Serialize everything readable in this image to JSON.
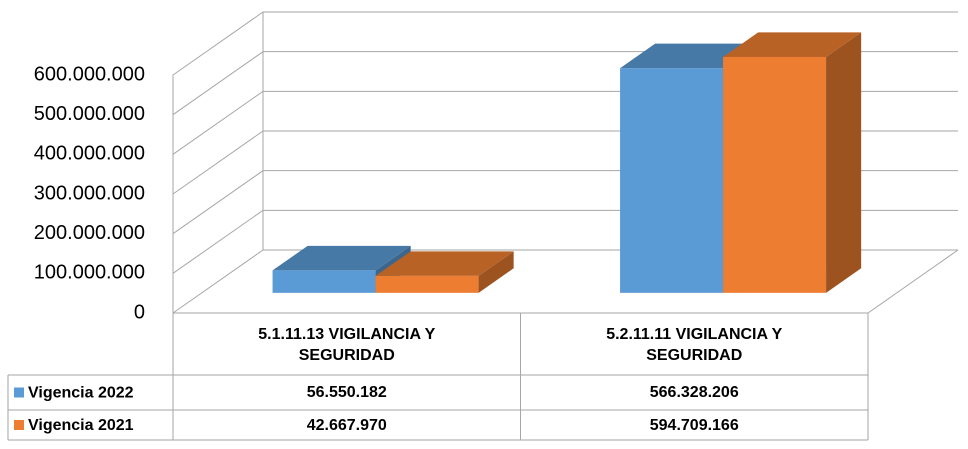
{
  "chart_data": {
    "type": "bar3d",
    "categories": [
      "5.1.11.13 VIGILANCIA Y SEGURIDAD",
      "5.2.11.11 VIGILANCIA Y SEGURIDAD"
    ],
    "series": [
      {
        "name": "Vigencia 2022",
        "color": "#5b9bd5",
        "values": [
          56550182,
          566328206
        ],
        "value_labels": [
          "56.550.182",
          "566.328.206"
        ]
      },
      {
        "name": "Vigencia 2021",
        "color": "#ed7d31",
        "values": [
          42667970,
          594709166
        ],
        "value_labels": [
          "42.667.970",
          "594.709.166"
        ]
      }
    ],
    "ylim": [
      0,
      600000000
    ],
    "yticks": [
      0,
      {
        "value": 100000000,
        "label": "100.000.000"
      },
      {
        "value": 200000000,
        "label": "200.000.000"
      },
      {
        "value": 300000000,
        "label": "300.000.000"
      },
      {
        "value": 400000000,
        "label": "400.000.000"
      },
      {
        "value": 500000000,
        "label": "500.000.000"
      },
      {
        "value": 600000000,
        "label": "600.000.000"
      }
    ],
    "grid": true,
    "data_table": true
  }
}
